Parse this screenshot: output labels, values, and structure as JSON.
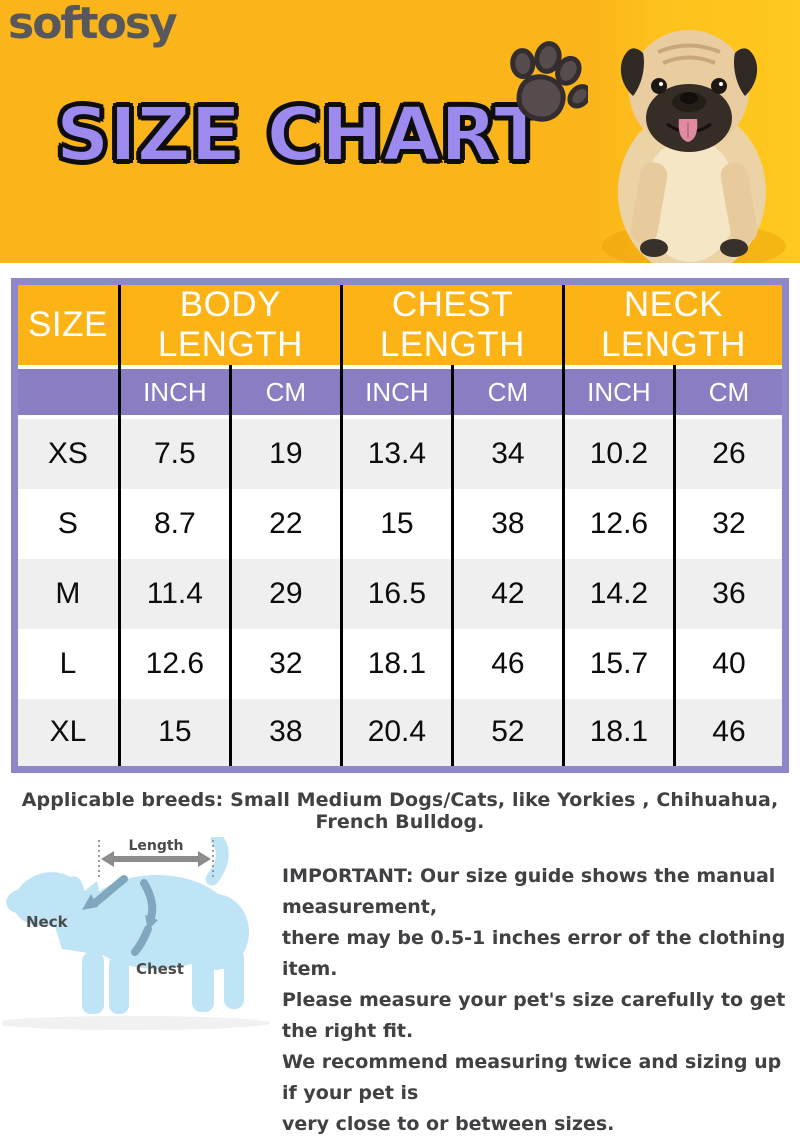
{
  "banner": {
    "brand": "softosy",
    "title": "SIZE CHART"
  },
  "icons": {
    "paw": "paw-print",
    "pug_photo": "pug-dog-on-yellow-background",
    "dog_diagram": "dog-measurement-guide"
  },
  "table": {
    "group_headers": [
      "SIZE",
      "BODY LENGTH",
      "CHEST LENGTH",
      "NECK LENGTH"
    ],
    "sub_headers": [
      "INCH",
      "CM",
      "INCH",
      "CM",
      "INCH",
      "CM"
    ],
    "rows": [
      {
        "size": "XS",
        "values": [
          "7.5",
          "19",
          "13.4",
          "34",
          "10.2",
          "26"
        ]
      },
      {
        "size": "S",
        "values": [
          "8.7",
          "22",
          "15",
          "38",
          "12.6",
          "32"
        ]
      },
      {
        "size": "M",
        "values": [
          "11.4",
          "29",
          "16.5",
          "42",
          "14.2",
          "36"
        ]
      },
      {
        "size": "L",
        "values": [
          "12.6",
          "32",
          "18.1",
          "46",
          "15.7",
          "40"
        ]
      },
      {
        "size": "XL",
        "values": [
          "15",
          "38",
          "20.4",
          "52",
          "18.1",
          "46"
        ]
      }
    ]
  },
  "notes": {
    "breeds": "Applicable breeds: Small Medium Dogs/Cats, like Yorkies , Chihuahua, French Bulldog.",
    "important": "IMPORTANT: Our size guide shows the manual measurement,\nthere may be 0.5-1 inches error of the clothing item.\nPlease measure your pet's size carefully to get the right fit.\nWe recommend measuring twice and sizing up if your pet is\nvery close to or between sizes."
  },
  "diagram": {
    "length_label": "Length",
    "neck_label": "Neck",
    "chest_label": "Chest"
  },
  "colors": {
    "banner_yellow": "#FBB41A",
    "title_purple": "#9C8AEE",
    "header_yellow": "#FCB316",
    "subheader_purple": "#8B7DC2",
    "table_border_purple": "#8E87C9",
    "row_gray": "#EFEFEF",
    "note_text": "#414144",
    "dog_blue": "#BFE4F6",
    "band_blue": "#7FA8BE"
  }
}
